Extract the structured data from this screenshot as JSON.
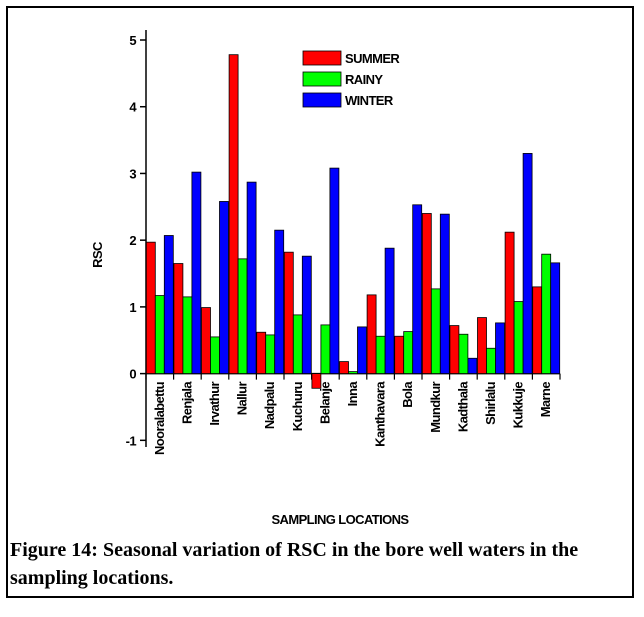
{
  "chart_data": {
    "type": "bar",
    "y_label": "RSC",
    "x_label": "SAMPLING LOCATIONS",
    "categories": [
      "Nooralabettu",
      "Renjala",
      "Irvathur",
      "Nallur",
      "Nadpalu",
      "Kuchuru",
      "Belanje",
      "Inna",
      "Kanthavara",
      "Bola",
      "Mundkur",
      "Kadthala",
      "Shirlalu",
      "Kukkuje",
      "Marne"
    ],
    "series": [
      {
        "name": "SUMMER",
        "color": "#ff0000",
        "values": [
          1.97,
          1.65,
          0.99,
          4.78,
          0.62,
          1.82,
          -0.22,
          0.18,
          1.18,
          0.56,
          2.4,
          0.72,
          0.84,
          2.12,
          1.3
        ]
      },
      {
        "name": "RAINY",
        "color": "#00ff00",
        "values": [
          1.17,
          1.15,
          0.55,
          1.72,
          0.58,
          0.88,
          0.73,
          0.03,
          0.56,
          0.63,
          1.27,
          0.59,
          0.38,
          1.08,
          1.79
        ]
      },
      {
        "name": "WINTER",
        "color": "#0000ff",
        "values": [
          2.07,
          3.02,
          2.58,
          2.87,
          2.15,
          1.76,
          3.08,
          0.7,
          1.88,
          2.53,
          2.39,
          0.23,
          0.76,
          3.3,
          1.66
        ]
      }
    ],
    "ylim": [
      -1.1,
      5.15
    ],
    "yticks": [
      -1,
      0,
      1,
      2,
      3,
      4,
      5
    ],
    "grid": false,
    "legend": "top"
  },
  "caption": "Figure 14: Seasonal variation of RSC in the bore well waters in the sampling locations."
}
